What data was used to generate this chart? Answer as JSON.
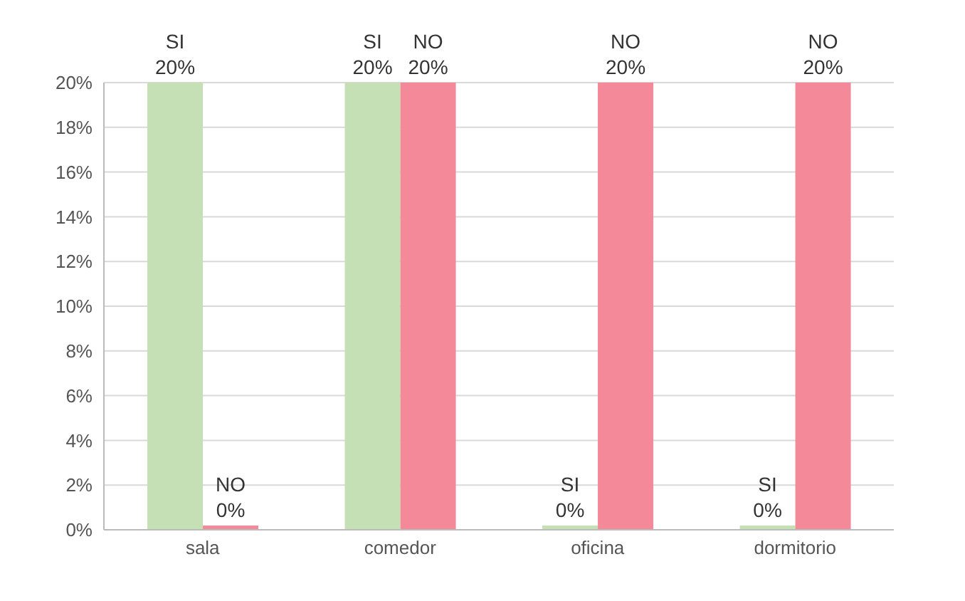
{
  "chart_data": {
    "type": "bar",
    "categories": [
      "sala",
      "comedor",
      "oficina",
      "dormitorio"
    ],
    "series": [
      {
        "name": "SI",
        "color": "#c5e0b4",
        "values": [
          20,
          20,
          0,
          0
        ],
        "value_labels": [
          "20%",
          "20%",
          "0%",
          "0%"
        ]
      },
      {
        "name": "NO",
        "color": "#f4899a",
        "values": [
          0,
          20,
          20,
          20
        ],
        "value_labels": [
          "0%",
          "20%",
          "20%",
          "20%"
        ]
      }
    ],
    "ylim": [
      0,
      20
    ],
    "yticks": [
      {
        "value": 0,
        "label": "0%"
      },
      {
        "value": 2,
        "label": "2%"
      },
      {
        "value": 4,
        "label": "4%"
      },
      {
        "value": 6,
        "label": "6%"
      },
      {
        "value": 8,
        "label": "8%"
      },
      {
        "value": 10,
        "label": "10%"
      },
      {
        "value": 12,
        "label": "12%"
      },
      {
        "value": 14,
        "label": "14%"
      },
      {
        "value": 16,
        "label": "16%"
      },
      {
        "value": 18,
        "label": "18%"
      },
      {
        "value": 20,
        "label": "20%"
      }
    ],
    "grid": "y",
    "legend": false
  }
}
